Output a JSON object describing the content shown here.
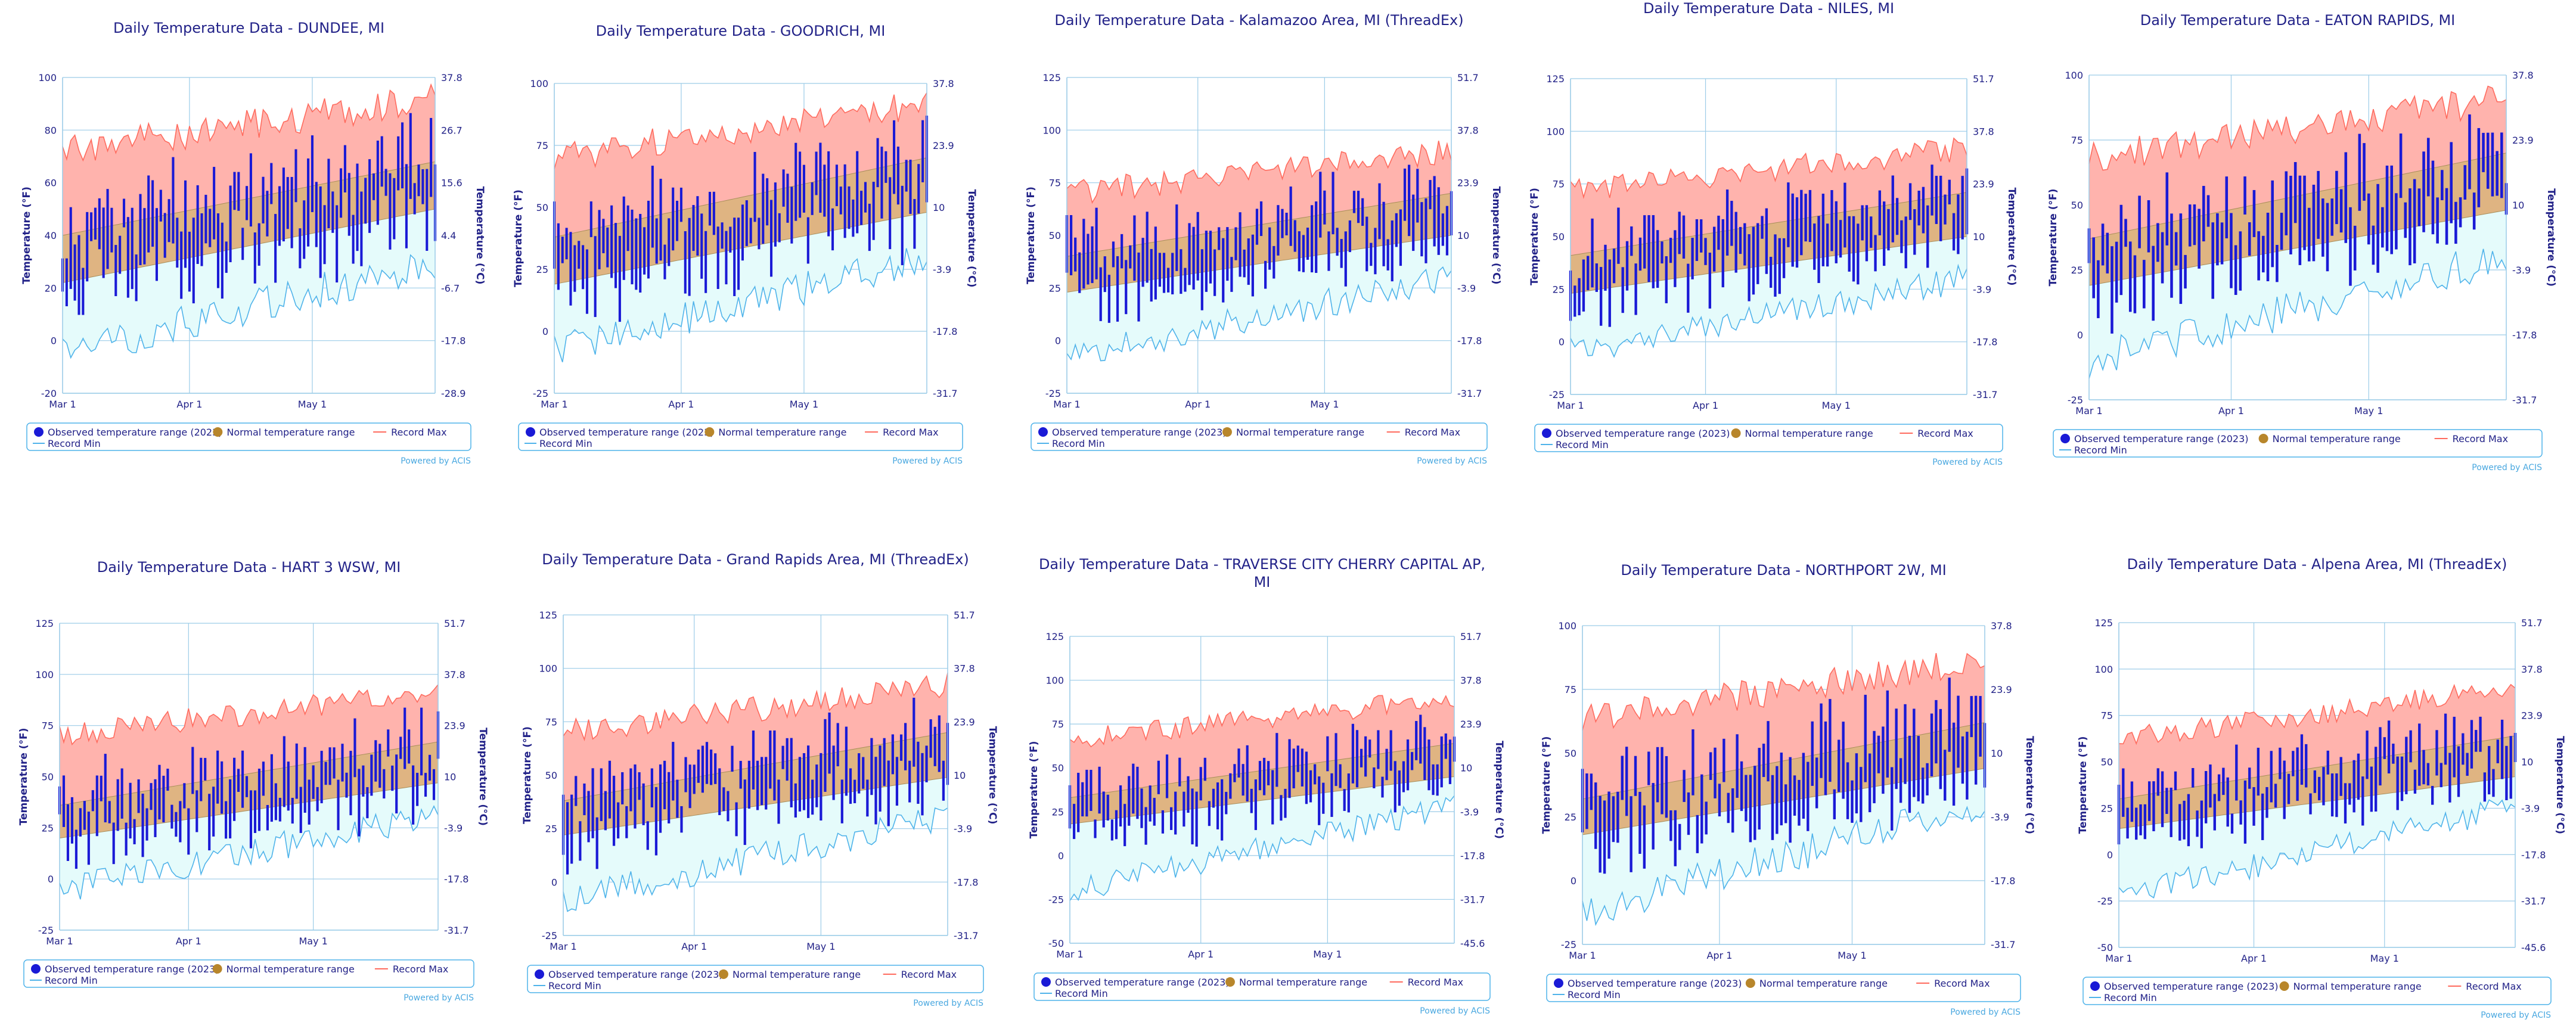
{
  "colors": {
    "observed": "#1a1ad6",
    "normal": "#d9b47a",
    "record_max_fill": "#ffb3ad",
    "record_max_line": "#ff6b5e",
    "record_min_fill": "#e5fbfb",
    "record_min_line": "#4fb3ea",
    "axis": "#9ccce8",
    "text": "#222288",
    "credit": "#4aa8e0",
    "legend_border": "#4fb3ea"
  },
  "legend": {
    "observed": "Observed temperature range (2023)",
    "normal": "Normal temperature range",
    "record_max": "Record Max",
    "record_min": "Record Min"
  },
  "credit": "Powered by ACIS",
  "axes": {
    "ylabel_left": "Temperature (°F)",
    "ylabel_right": "Temperature (°C)",
    "x_ticks": [
      "Mar 1",
      "Apr 1",
      "May 1"
    ]
  },
  "chart_data": [
    {
      "type": "area",
      "title": "Daily Temperature Data - DUNDEE, MI",
      "title_lines": [
        "Daily Temperature Data - DUNDEE, MI"
      ],
      "ylim": [
        -20,
        100
      ],
      "yticks": [
        "-20",
        "0",
        "20",
        "40",
        "60",
        "80",
        "100"
      ],
      "ctick_vals": [
        -20,
        0,
        20,
        40,
        60,
        80,
        100
      ],
      "cticks": [
        "-28.9",
        "-17.8",
        "-6.7",
        "4.4",
        "15.6",
        "26.7",
        "37.8"
      ],
      "normal_start": [
        22,
        40
      ],
      "normal_end": [
        50,
        68
      ],
      "recmax_base": 72,
      "recmax_rise": 20,
      "recmin_base": -5,
      "recmin_rise": 35,
      "seed": 11
    },
    {
      "type": "area",
      "title": "Daily Temperature Data - GOODRICH, MI",
      "title_lines": [
        "Daily Temperature Data - GOODRICH, MI"
      ],
      "ylim": [
        -25,
        100
      ],
      "yticks": [
        "-25",
        "0",
        "25",
        "50",
        "75",
        "100"
      ],
      "ctick_vals": [
        -25,
        0,
        25,
        50,
        75,
        100
      ],
      "cticks": [
        "-31.7",
        "-17.8",
        "-3.9",
        "10",
        "23.9",
        "37.8"
      ],
      "normal_start": [
        19,
        38
      ],
      "normal_end": [
        48,
        70
      ],
      "recmax_base": 70,
      "recmax_rise": 22,
      "recmin_base": -8,
      "recmin_rise": 38,
      "seed": 23
    },
    {
      "type": "area",
      "title": "Daily Temperature Data - Kalamazoo Area, MI (ThreadEx)",
      "title_lines": [
        "Daily Temperature Data - Kalamazoo Area, MI (ThreadEx)"
      ],
      "ylim": [
        -25,
        125
      ],
      "yticks": [
        "-25",
        "0",
        "25",
        "50",
        "75",
        "100",
        "125"
      ],
      "ctick_vals": [
        -25,
        0,
        25,
        50,
        75,
        100,
        125
      ],
      "cticks": [
        "-31.7",
        "-17.8",
        "-3.9",
        "10",
        "23.9",
        "37.8",
        "51.7"
      ],
      "normal_start": [
        23,
        40
      ],
      "normal_end": [
        50,
        70
      ],
      "recmax_base": 70,
      "recmax_rise": 20,
      "recmin_base": -8,
      "recmin_rise": 38,
      "seed": 37
    },
    {
      "type": "area",
      "title": "Daily Temperature Data - NILES, MI",
      "title_lines": [
        "Daily Temperature Data - NILES, MI"
      ],
      "ylim": [
        -25,
        125
      ],
      "yticks": [
        "-25",
        "0",
        "25",
        "50",
        "75",
        "100",
        "125"
      ],
      "ctick_vals": [
        -25,
        0,
        25,
        50,
        75,
        100,
        125
      ],
      "cticks": [
        "-31.7",
        "-17.8",
        "-3.9",
        "10",
        "23.9",
        "37.8",
        "51.7"
      ],
      "normal_start": [
        23,
        41
      ],
      "normal_end": [
        50,
        71
      ],
      "recmax_base": 72,
      "recmax_rise": 20,
      "recmin_base": -5,
      "recmin_rise": 35,
      "seed": 41
    },
    {
      "type": "area",
      "title": "Daily Temperature Data - EATON RAPIDS, MI",
      "title_lines": [
        "Daily Temperature Data - EATON RAPIDS, MI"
      ],
      "ylim": [
        -25,
        100
      ],
      "yticks": [
        "-25",
        "0",
        "25",
        "50",
        "75",
        "100"
      ],
      "ctick_vals": [
        -25,
        0,
        25,
        50,
        75,
        100
      ],
      "cticks": [
        "-31.7",
        "-17.8",
        "-3.9",
        "10",
        "23.9",
        "37.8"
      ],
      "normal_start": [
        19,
        37
      ],
      "normal_end": [
        48,
        70
      ],
      "recmax_base": 68,
      "recmax_rise": 23,
      "recmin_base": -10,
      "recmin_rise": 40,
      "seed": 53
    },
    {
      "type": "area",
      "title": "Daily Temperature Data - HART 3 WSW, MI",
      "title_lines": [
        "Daily Temperature Data - HART 3 WSW, MI"
      ],
      "ylim": [
        -25,
        125
      ],
      "yticks": [
        "-25",
        "0",
        "25",
        "50",
        "75",
        "100",
        "125"
      ],
      "ctick_vals": [
        -25,
        0,
        25,
        50,
        75,
        100,
        125
      ],
      "cticks": [
        "-31.7",
        "-17.8",
        "-3.9",
        "10",
        "23.9",
        "37.8",
        "51.7"
      ],
      "normal_start": [
        20,
        36
      ],
      "normal_end": [
        47,
        67
      ],
      "recmax_base": 70,
      "recmax_rise": 22,
      "recmin_base": -5,
      "recmin_rise": 36,
      "seed": 67
    },
    {
      "type": "area",
      "title": "Daily Temperature Data - Grand Rapids Area, MI (ThreadEx)",
      "title_lines": [
        "Daily Temperature Data - Grand Rapids Area, MI (ThreadEx)"
      ],
      "ylim": [
        -25,
        125
      ],
      "yticks": [
        "-25",
        "0",
        "25",
        "50",
        "75",
        "100",
        "125"
      ],
      "ctick_vals": [
        -25,
        0,
        25,
        50,
        75,
        100,
        125
      ],
      "cticks": [
        "-31.7",
        "-17.8",
        "-3.9",
        "10",
        "23.9",
        "37.8",
        "51.7"
      ],
      "normal_start": [
        22,
        38
      ],
      "normal_end": [
        49,
        70
      ],
      "recmax_base": 70,
      "recmax_rise": 22,
      "recmin_base": -8,
      "recmin_rise": 38,
      "seed": 79
    },
    {
      "type": "area",
      "title": "Daily Temperature Data - TRAVERSE CITY CHERRY CAPITAL AP, MI",
      "title_lines": [
        "Daily Temperature Data - TRAVERSE CITY CHERRY CAPITAL AP,",
        "MI"
      ],
      "ylim": [
        -50,
        125
      ],
      "yticks": [
        "-50",
        "-25",
        "0",
        "25",
        "50",
        "75",
        "100",
        "125"
      ],
      "ctick_vals": [
        -50,
        -25,
        0,
        25,
        50,
        75,
        100,
        125
      ],
      "cticks": [
        "-45.6",
        "-31.7",
        "-17.8",
        "-3.9",
        "10",
        "23.9",
        "37.8",
        "51.7"
      ],
      "normal_start": [
        18,
        33
      ],
      "normal_end": [
        45,
        64
      ],
      "recmax_base": 66,
      "recmax_rise": 24,
      "recmin_base": -20,
      "recmin_rise": 48,
      "seed": 83
    },
    {
      "type": "area",
      "title": "Daily Temperature Data - NORTHPORT 2W, MI",
      "title_lines": [
        "Daily Temperature Data - NORTHPORT 2W, MI"
      ],
      "ylim": [
        -25,
        100
      ],
      "yticks": [
        "-25",
        "0",
        "25",
        "50",
        "75",
        "100"
      ],
      "ctick_vals": [
        -25,
        0,
        25,
        50,
        75,
        100
      ],
      "cticks": [
        "-31.7",
        "-17.8",
        "-3.9",
        "10",
        "23.9",
        "37.8"
      ],
      "normal_start": [
        18,
        32
      ],
      "normal_end": [
        44,
        62
      ],
      "recmax_base": 64,
      "recmax_rise": 22,
      "recmin_base": -12,
      "recmin_rise": 42,
      "seed": 97
    },
    {
      "type": "area",
      "title": "Daily Temperature Data - Alpena Area, MI (ThreadEx)",
      "title_lines": [
        "Daily Temperature Data - Alpena Area, MI (ThreadEx)"
      ],
      "ylim": [
        -50,
        125
      ],
      "yticks": [
        "-50",
        "-25",
        "0",
        "25",
        "50",
        "75",
        "100",
        "125"
      ],
      "ctick_vals": [
        -50,
        -25,
        0,
        25,
        50,
        75,
        100,
        125
      ],
      "cticks": [
        "-45.6",
        "-31.7",
        "-17.8",
        "-3.9",
        "10",
        "23.9",
        "37.8",
        "51.7"
      ],
      "normal_start": [
        14,
        30
      ],
      "normal_end": [
        42,
        64
      ],
      "recmax_base": 62,
      "recmax_rise": 28,
      "recmin_base": -22,
      "recmin_rise": 48,
      "seed": 103
    }
  ]
}
